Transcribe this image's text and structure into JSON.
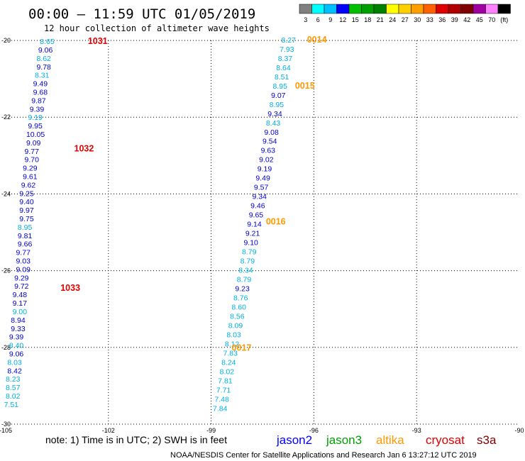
{
  "header": {
    "title": "00:00 – 11:59 UTC 01/05/2019",
    "subtitle": "12 hour collection of altimeter wave heights"
  },
  "colorbar": {
    "labels": [
      "3",
      "6",
      "9",
      "12",
      "15",
      "18",
      "21",
      "24",
      "27",
      "30",
      "33",
      "36",
      "39",
      "42",
      "45",
      "70",
      "(ft)"
    ],
    "colors": [
      "#808080",
      "#00ffff",
      "#00bfff",
      "#0000ff",
      "#00c000",
      "#00a000",
      "#008000",
      "#ffff00",
      "#ffd000",
      "#ffa000",
      "#ff6000",
      "#e00000",
      "#b00000",
      "#800000",
      "#a000a0",
      "#ff80ff",
      "#000000"
    ]
  },
  "footer": {
    "note": "note:  1) Time is in UTC;  2) SWH is in feet",
    "credit": "NOAA/NESDIS Center for Satellite Applications and Research    Jan  6 13:27:12 UTC 2019"
  },
  "legend": [
    {
      "name": "jason2",
      "color": "#0000ff"
    },
    {
      "name": "jason3",
      "color": "#00a000"
    },
    {
      "name": "altika",
      "color": "#ff9900"
    },
    {
      "name": "cryosat",
      "color": "#e00000"
    },
    {
      "name": "s3a",
      "color": "#800000"
    }
  ],
  "chart_data": {
    "type": "scatter",
    "title": "00:00 – 11:59 UTC 01/05/2019",
    "subtitle": "12 hour collection of altimeter wave heights",
    "xlim": [
      -105,
      -90
    ],
    "ylim": [
      -30,
      -20
    ],
    "xticks": [
      "-105",
      "-102",
      "-99",
      "-96",
      "-93",
      "-90"
    ],
    "yticks": [
      "-20",
      "-22",
      "-24",
      "-26",
      "-28",
      "-30"
    ],
    "grid": true,
    "color_map": {
      "light": "#00b0e0",
      "dark": "#0000d0"
    },
    "series": [
      {
        "name": "cryosat",
        "color_key": "#e00000",
        "time_labels": [
          {
            "label": "1031",
            "lon": -102.6,
            "lat": -20.02
          },
          {
            "label": "1032",
            "lon": -103.0,
            "lat": -22.82
          },
          {
            "label": "1033",
            "lon": -103.4,
            "lat": -26.45
          }
        ],
        "points": [
          {
            "lon": -104.0,
            "lat": -20.02,
            "swh": "8.65",
            "c": "light"
          },
          {
            "lon": -104.05,
            "lat": -20.24,
            "swh": "9.06",
            "c": "dark"
          },
          {
            "lon": -104.1,
            "lat": -20.46,
            "swh": "8.62",
            "c": "light"
          },
          {
            "lon": -104.1,
            "lat": -20.68,
            "swh": "9.78",
            "c": "dark"
          },
          {
            "lon": -104.15,
            "lat": -20.9,
            "swh": "8.31",
            "c": "light"
          },
          {
            "lon": -104.2,
            "lat": -21.12,
            "swh": "9.49",
            "c": "dark"
          },
          {
            "lon": -104.2,
            "lat": -21.34,
            "swh": "9.68",
            "c": "dark"
          },
          {
            "lon": -104.25,
            "lat": -21.56,
            "swh": "9.87",
            "c": "dark"
          },
          {
            "lon": -104.3,
            "lat": -21.78,
            "swh": "9.39",
            "c": "dark"
          },
          {
            "lon": -104.35,
            "lat": -22.0,
            "swh": "9.19",
            "c": "light"
          },
          {
            "lon": -104.35,
            "lat": -22.22,
            "swh": "9.95",
            "c": "dark"
          },
          {
            "lon": -104.4,
            "lat": -22.44,
            "swh": "10.05",
            "c": "dark"
          },
          {
            "lon": -104.4,
            "lat": -22.66,
            "swh": "9.09",
            "c": "dark"
          },
          {
            "lon": -104.45,
            "lat": -22.88,
            "swh": "9.77",
            "c": "dark"
          },
          {
            "lon": -104.45,
            "lat": -23.1,
            "swh": "9.70",
            "c": "dark"
          },
          {
            "lon": -104.5,
            "lat": -23.32,
            "swh": "9.29",
            "c": "dark"
          },
          {
            "lon": -104.5,
            "lat": -23.54,
            "swh": "9.61",
            "c": "dark"
          },
          {
            "lon": -104.55,
            "lat": -23.76,
            "swh": "9.62",
            "c": "dark"
          },
          {
            "lon": -104.6,
            "lat": -23.98,
            "swh": "9.25",
            "c": "dark"
          },
          {
            "lon": -104.6,
            "lat": -24.2,
            "swh": "9.40",
            "c": "dark"
          },
          {
            "lon": -104.6,
            "lat": -24.42,
            "swh": "9.97",
            "c": "dark"
          },
          {
            "lon": -104.6,
            "lat": -24.64,
            "swh": "9.75",
            "c": "dark"
          },
          {
            "lon": -104.65,
            "lat": -24.86,
            "swh": "8.95",
            "c": "light"
          },
          {
            "lon": -104.65,
            "lat": -25.08,
            "swh": "9.81",
            "c": "dark"
          },
          {
            "lon": -104.65,
            "lat": -25.3,
            "swh": "9.66",
            "c": "dark"
          },
          {
            "lon": -104.7,
            "lat": -25.52,
            "swh": "9.77",
            "c": "dark"
          },
          {
            "lon": -104.7,
            "lat": -25.74,
            "swh": "9.03",
            "c": "dark"
          },
          {
            "lon": -104.7,
            "lat": -25.96,
            "swh": "9.09",
            "c": "dark"
          },
          {
            "lon": -104.75,
            "lat": -26.18,
            "swh": "9.29",
            "c": "dark"
          },
          {
            "lon": -104.75,
            "lat": -26.4,
            "swh": "9.72",
            "c": "dark"
          },
          {
            "lon": -104.8,
            "lat": -26.62,
            "swh": "9.48",
            "c": "dark"
          },
          {
            "lon": -104.8,
            "lat": -26.84,
            "swh": "9.17",
            "c": "dark"
          },
          {
            "lon": -104.8,
            "lat": -27.06,
            "swh": "9.00",
            "c": "light"
          },
          {
            "lon": -104.85,
            "lat": -27.28,
            "swh": "8.94",
            "c": "dark"
          },
          {
            "lon": -104.85,
            "lat": -27.5,
            "swh": "9.33",
            "c": "dark"
          },
          {
            "lon": -104.9,
            "lat": -27.72,
            "swh": "9.39",
            "c": "dark"
          },
          {
            "lon": -104.9,
            "lat": -27.94,
            "swh": "8.40",
            "c": "light"
          },
          {
            "lon": -104.9,
            "lat": -28.16,
            "swh": "9.06",
            "c": "dark"
          },
          {
            "lon": -104.95,
            "lat": -28.38,
            "swh": "8.03",
            "c": "light"
          },
          {
            "lon": -104.95,
            "lat": -28.6,
            "swh": "8.42",
            "c": "dark"
          },
          {
            "lon": -105.0,
            "lat": -28.82,
            "swh": "8.23",
            "c": "light"
          },
          {
            "lon": -105.0,
            "lat": -29.04,
            "swh": "8.57",
            "c": "light"
          },
          {
            "lon": -105.0,
            "lat": -29.26,
            "swh": "8.02",
            "c": "light"
          },
          {
            "lon": -105.05,
            "lat": -29.48,
            "swh": "7.51",
            "c": "light"
          }
        ]
      },
      {
        "name": "altika",
        "color_key": "#ff9900",
        "time_labels": [
          {
            "label": "0014",
            "lon": -96.2,
            "lat": -19.98
          },
          {
            "label": "0015",
            "lon": -96.55,
            "lat": -21.18
          },
          {
            "label": "0016",
            "lon": -97.4,
            "lat": -24.72
          },
          {
            "label": "0017",
            "lon": -98.4,
            "lat": -28.01
          }
        ],
        "points": [
          {
            "lon": -96.95,
            "lat": -19.98,
            "swh": "8.27",
            "c": "light"
          },
          {
            "lon": -97.0,
            "lat": -20.22,
            "swh": "7.93",
            "c": "light"
          },
          {
            "lon": -97.05,
            "lat": -20.46,
            "swh": "8.37",
            "c": "light"
          },
          {
            "lon": -97.1,
            "lat": -20.7,
            "swh": "8.64",
            "c": "light"
          },
          {
            "lon": -97.15,
            "lat": -20.94,
            "swh": "8.51",
            "c": "light"
          },
          {
            "lon": -97.2,
            "lat": -21.18,
            "swh": "8.95",
            "c": "light"
          },
          {
            "lon": -97.25,
            "lat": -21.42,
            "swh": "9.07",
            "c": "dark"
          },
          {
            "lon": -97.3,
            "lat": -21.66,
            "swh": "8.95",
            "c": "light"
          },
          {
            "lon": -97.35,
            "lat": -21.9,
            "swh": "9.34",
            "c": "dark"
          },
          {
            "lon": -97.4,
            "lat": -22.14,
            "swh": "8.43",
            "c": "light"
          },
          {
            "lon": -97.45,
            "lat": -22.38,
            "swh": "9.08",
            "c": "dark"
          },
          {
            "lon": -97.5,
            "lat": -22.62,
            "swh": "9.54",
            "c": "dark"
          },
          {
            "lon": -97.55,
            "lat": -22.86,
            "swh": "9.63",
            "c": "dark"
          },
          {
            "lon": -97.6,
            "lat": -23.1,
            "swh": "9.02",
            "c": "dark"
          },
          {
            "lon": -97.65,
            "lat": -23.34,
            "swh": "9.19",
            "c": "dark"
          },
          {
            "lon": -97.7,
            "lat": -23.58,
            "swh": "9.49",
            "c": "dark"
          },
          {
            "lon": -97.75,
            "lat": -23.82,
            "swh": "9.57",
            "c": "dark"
          },
          {
            "lon": -97.8,
            "lat": -24.06,
            "swh": "9.34",
            "c": "dark"
          },
          {
            "lon": -97.85,
            "lat": -24.3,
            "swh": "9.46",
            "c": "dark"
          },
          {
            "lon": -97.9,
            "lat": -24.54,
            "swh": "9.65",
            "c": "dark"
          },
          {
            "lon": -97.95,
            "lat": -24.78,
            "swh": "9.14",
            "c": "dark"
          },
          {
            "lon": -98.0,
            "lat": -25.02,
            "swh": "9.21",
            "c": "dark"
          },
          {
            "lon": -98.05,
            "lat": -25.26,
            "swh": "9.10",
            "c": "dark"
          },
          {
            "lon": -98.1,
            "lat": -25.5,
            "swh": "8.79",
            "c": "light"
          },
          {
            "lon": -98.15,
            "lat": -25.74,
            "swh": "8.79",
            "c": "light"
          },
          {
            "lon": -98.2,
            "lat": -25.98,
            "swh": "8.34",
            "c": "light"
          },
          {
            "lon": -98.25,
            "lat": -26.22,
            "swh": "8.79",
            "c": "light"
          },
          {
            "lon": -98.3,
            "lat": -26.46,
            "swh": "9.23",
            "c": "dark"
          },
          {
            "lon": -98.35,
            "lat": -26.7,
            "swh": "8.76",
            "c": "light"
          },
          {
            "lon": -98.4,
            "lat": -26.94,
            "swh": "8.60",
            "c": "light"
          },
          {
            "lon": -98.45,
            "lat": -27.18,
            "swh": "8.56",
            "c": "light"
          },
          {
            "lon": -98.5,
            "lat": -27.42,
            "swh": "8.09",
            "c": "light"
          },
          {
            "lon": -98.55,
            "lat": -27.66,
            "swh": "8.03",
            "c": "light"
          },
          {
            "lon": -98.6,
            "lat": -27.9,
            "swh": "8.12",
            "c": "light"
          },
          {
            "lon": -98.65,
            "lat": -28.14,
            "swh": "7.83",
            "c": "light"
          },
          {
            "lon": -98.7,
            "lat": -28.38,
            "swh": "8.24",
            "c": "light"
          },
          {
            "lon": -98.75,
            "lat": -28.62,
            "swh": "8.02",
            "c": "light"
          },
          {
            "lon": -98.8,
            "lat": -28.86,
            "swh": "7.81",
            "c": "light"
          },
          {
            "lon": -98.85,
            "lat": -29.1,
            "swh": "7.71",
            "c": "light"
          },
          {
            "lon": -98.9,
            "lat": -29.34,
            "swh": "7.48",
            "c": "light"
          },
          {
            "lon": -98.95,
            "lat": -29.58,
            "swh": "7.84",
            "c": "light"
          }
        ]
      }
    ]
  }
}
